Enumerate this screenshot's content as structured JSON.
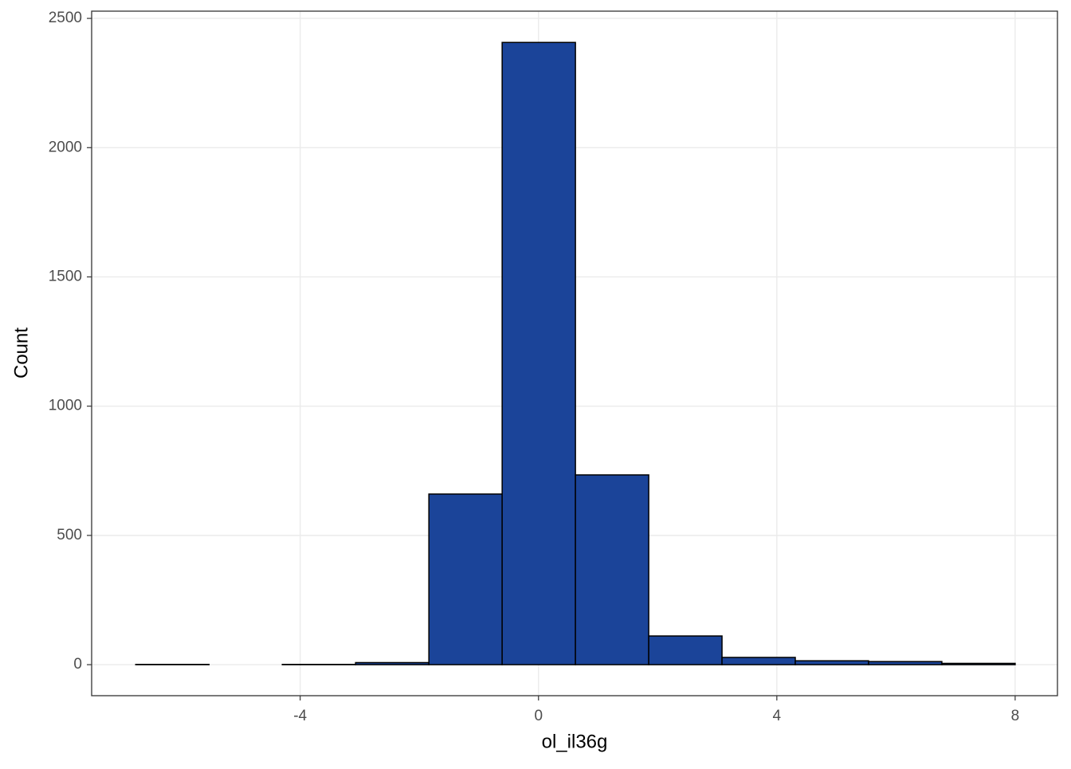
{
  "chart_data": {
    "type": "histogram",
    "x_label": "ol_il36g",
    "y_label": "Count",
    "bins": [
      -6.76,
      -5.53,
      -4.3,
      -3.07,
      -1.84,
      -0.61,
      0.62,
      1.85,
      3.08,
      4.31,
      5.54,
      6.77,
      8.0
    ],
    "values": [
      1,
      0,
      1,
      8,
      660,
      2407,
      734,
      111,
      28,
      15,
      12,
      5
    ],
    "color": "#1b4499",
    "xlim": [
      -7.5,
      8.71
    ],
    "xticks": [
      -4,
      0,
      4,
      8
    ],
    "ylim": [
      -120,
      2528
    ],
    "yticks": [
      0,
      500,
      1000,
      1500,
      2000,
      2500
    ],
    "grid": true
  }
}
